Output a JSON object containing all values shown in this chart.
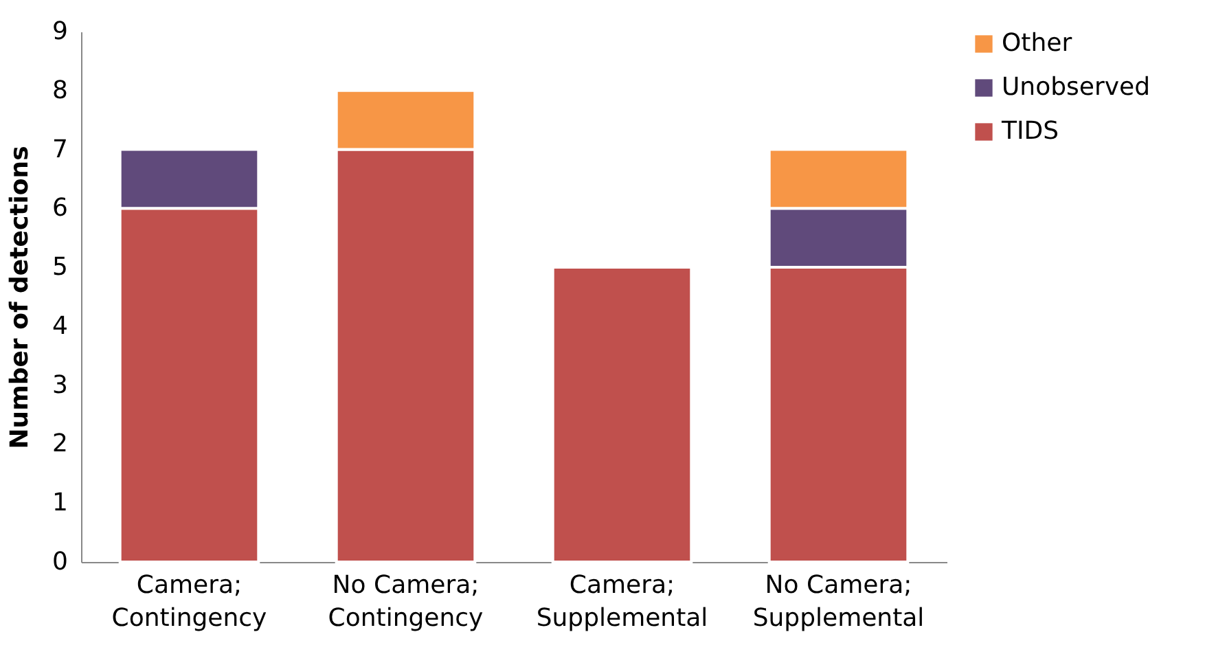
{
  "chart_data": {
    "type": "bar",
    "stacked": true,
    "ylabel": "Number of detections",
    "categories": [
      "Camera; Contingency",
      "No Camera; Contingency",
      "Camera; Supplemental",
      "No Camera; Supplemental"
    ],
    "series": [
      {
        "name": "TIDS",
        "color": "#c0504d",
        "values": [
          6,
          7,
          5,
          5
        ]
      },
      {
        "name": "Unobserved",
        "color": "#604a7b",
        "values": [
          1,
          null,
          null,
          1
        ]
      },
      {
        "name": "Other",
        "color": "#f79646",
        "values": [
          null,
          1,
          null,
          1
        ]
      }
    ],
    "ylim": [
      0,
      9
    ],
    "yticks": [
      0,
      1,
      2,
      3,
      4,
      5,
      6,
      7,
      8,
      9
    ],
    "legend": "right",
    "grid": false
  }
}
